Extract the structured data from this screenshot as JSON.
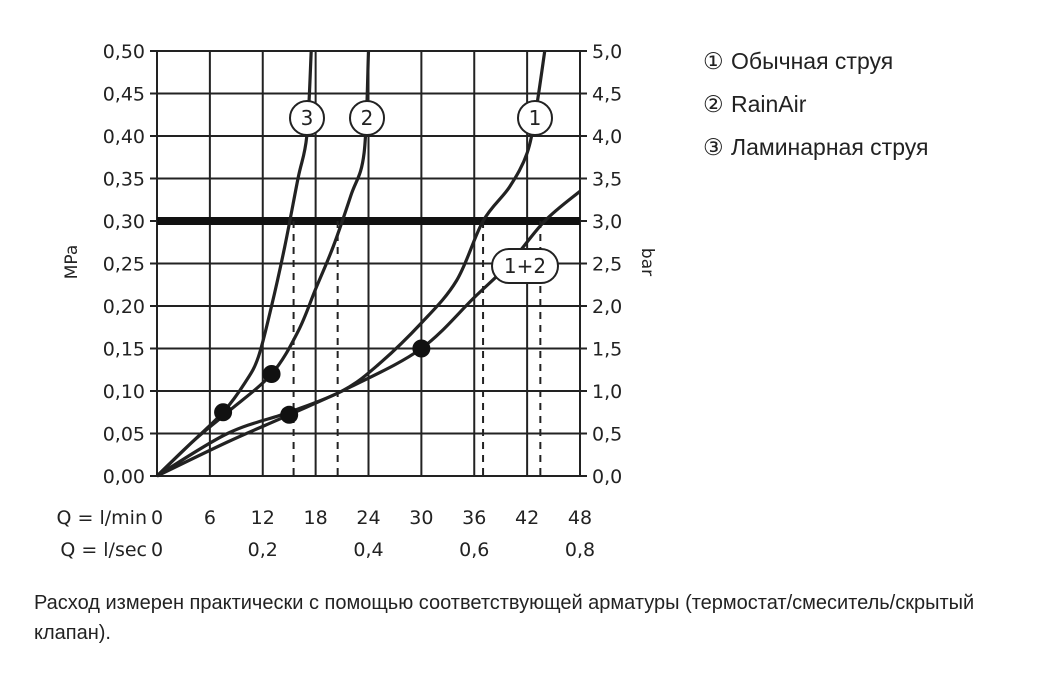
{
  "chart_data": {
    "type": "line",
    "ylabel_left": "MPa",
    "ylabel_right": "bar",
    "x_axes": [
      {
        "label": "Q = l/min",
        "ticks": [
          "0",
          "6",
          "12",
          "18",
          "24",
          "30",
          "36",
          "42",
          "48"
        ],
        "range": [
          0,
          48
        ]
      },
      {
        "label": "Q = l/sec",
        "ticks": [
          "0",
          "0,2",
          "0,4",
          "0,6",
          "0,8"
        ]
      }
    ],
    "y_left": {
      "ticks": [
        "0,00",
        "0,05",
        "0,10",
        "0,15",
        "0,20",
        "0,25",
        "0,30",
        "0,35",
        "0,40",
        "0,45",
        "0,50"
      ],
      "range": [
        0,
        0.5
      ]
    },
    "y_right": {
      "ticks": [
        "0,0",
        "0,5",
        "1,0",
        "1,5",
        "2,0",
        "2,5",
        "3,0",
        "3,5",
        "4,0",
        "4,5",
        "5,0"
      ],
      "range": [
        0,
        5
      ]
    },
    "grid": true,
    "reference_line": {
      "y": 0.3
    },
    "series": [
      {
        "label": "3",
        "points": [
          [
            0,
            0
          ],
          [
            4,
            0.04
          ],
          [
            7.5,
            0.075
          ],
          [
            10,
            0.11
          ],
          [
            11.5,
            0.14
          ],
          [
            13,
            0.2
          ],
          [
            14.5,
            0.27
          ],
          [
            16,
            0.35
          ],
          [
            17,
            0.4
          ],
          [
            17.5,
            0.5
          ]
        ],
        "markers": [
          [
            7.5,
            0.075
          ]
        ],
        "dash_at": [
          [
            15.5,
            0.3
          ]
        ]
      },
      {
        "label": "2",
        "points": [
          [
            0,
            0
          ],
          [
            4,
            0.04
          ],
          [
            8,
            0.075
          ],
          [
            13,
            0.12
          ],
          [
            16,
            0.17
          ],
          [
            18,
            0.22
          ],
          [
            20,
            0.27
          ],
          [
            22,
            0.33
          ],
          [
            23.5,
            0.38
          ],
          [
            24,
            0.5
          ]
        ],
        "markers": [
          [
            13,
            0.12
          ]
        ],
        "dash_at": [
          [
            20.5,
            0.3
          ]
        ]
      },
      {
        "label": "1",
        "points": [
          [
            0,
            0
          ],
          [
            8,
            0.05
          ],
          [
            15,
            0.075
          ],
          [
            21,
            0.1
          ],
          [
            25,
            0.13
          ],
          [
            30,
            0.18
          ],
          [
            34,
            0.23
          ],
          [
            37,
            0.3
          ],
          [
            40,
            0.34
          ],
          [
            42,
            0.38
          ],
          [
            43,
            0.43
          ],
          [
            44,
            0.5
          ]
        ],
        "dash_at": [
          [
            37,
            0.3
          ]
        ]
      },
      {
        "label": "1+2",
        "points": [
          [
            0,
            0
          ],
          [
            8,
            0.04
          ],
          [
            15,
            0.072
          ],
          [
            22,
            0.105
          ],
          [
            30,
            0.15
          ],
          [
            36,
            0.21
          ],
          [
            40,
            0.25
          ],
          [
            44,
            0.3
          ],
          [
            48,
            0.335
          ]
        ],
        "markers": [
          [
            15,
            0.072
          ],
          [
            30,
            0.15
          ]
        ],
        "dash_at": [
          [
            43.5,
            0.3
          ]
        ]
      }
    ]
  },
  "legend": [
    {
      "marker": "①",
      "text": "Обычная струя"
    },
    {
      "marker": "②",
      "text": "RainAir"
    },
    {
      "marker": "③",
      "text": "Ламинарная струя"
    }
  ],
  "note": "Расход измерен практически с помощью соответствующей арматуры (термостат/смеситель/скрытый клапан)."
}
